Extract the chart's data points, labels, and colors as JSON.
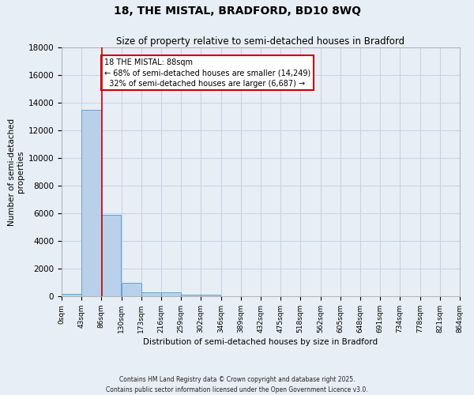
{
  "title": "18, THE MISTAL, BRADFORD, BD10 8WQ",
  "subtitle": "Size of property relative to semi-detached houses in Bradford",
  "xlabel": "Distribution of semi-detached houses by size in Bradford",
  "ylabel": "Number of semi-detached\nproperties",
  "footnote1": "Contains HM Land Registry data © Crown copyright and database right 2025.",
  "footnote2": "Contains public sector information licensed under the Open Government Licence v3.0.",
  "bin_edges": [
    0,
    43,
    86,
    130,
    173,
    216,
    259,
    302,
    346,
    389,
    432,
    475,
    518,
    562,
    605,
    648,
    691,
    734,
    778,
    821,
    864
  ],
  "bin_labels": [
    "0sqm",
    "43sqm",
    "86sqm",
    "130sqm",
    "173sqm",
    "216sqm",
    "259sqm",
    "302sqm",
    "346sqm",
    "389sqm",
    "432sqm",
    "475sqm",
    "518sqm",
    "562sqm",
    "605sqm",
    "648sqm",
    "691sqm",
    "734sqm",
    "778sqm",
    "821sqm",
    "864sqm"
  ],
  "bar_heights": [
    200,
    13500,
    5900,
    1000,
    300,
    300,
    100,
    100,
    0,
    0,
    0,
    0,
    0,
    0,
    0,
    0,
    0,
    0,
    0,
    0
  ],
  "bar_color": "#b8d0ea",
  "bar_edge_color": "#5599cc",
  "grid_color": "#c8d4e4",
  "background_color": "#e8eef6",
  "property_sqm": 88,
  "property_label": "18 THE MISTAL: 88sqm",
  "pct_smaller": 68,
  "pct_larger": 32,
  "count_smaller": 14249,
  "count_larger": 6687,
  "vline_color": "#cc0000",
  "annotation_box_color": "#cc0000",
  "ylim": [
    0,
    18000
  ],
  "yticks": [
    0,
    2000,
    4000,
    6000,
    8000,
    10000,
    12000,
    14000,
    16000,
    18000
  ]
}
